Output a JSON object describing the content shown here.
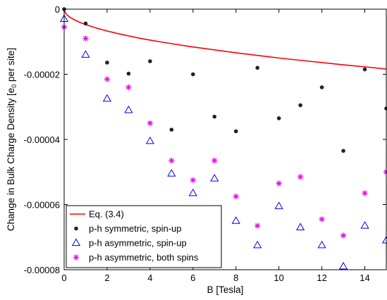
{
  "chart_data": {
    "type": "scatter",
    "xlabel": "B [Tesla]",
    "ylabel_main": "Change in Bulk Charge Density [e",
    "ylabel_sub": "0",
    "ylabel_end": " per site]",
    "xlim": [
      0,
      15
    ],
    "ylim": [
      -8e-05,
      0
    ],
    "xticks": [
      0,
      2,
      4,
      6,
      8,
      10,
      12,
      14
    ],
    "xtick_labels": [
      "0",
      "2",
      "4",
      "6",
      "8",
      "10",
      "12",
      "14"
    ],
    "yticks": [
      0,
      -2e-05,
      -4e-05,
      -6e-05,
      -8e-05
    ],
    "ytick_labels": [
      "0",
      "-0.00002",
      "-0.00004",
      "-0.00006",
      "-0.00008"
    ],
    "legend_position": "bottom-left",
    "series": [
      {
        "name": "Eq. (3.4)",
        "kind": "line",
        "color": "#ff0000",
        "x": [
          0,
          0.05,
          0.1,
          0.2,
          0.3,
          0.5,
          0.75,
          1,
          1.5,
          2,
          2.5,
          3,
          3.5,
          4,
          4.5,
          5,
          6,
          7,
          8,
          9,
          10,
          11,
          12,
          13,
          14,
          15
        ],
        "y": [
          0,
          -1.06e-06,
          -1.5e-06,
          -2.12e-06,
          -2.6e-06,
          -3.35e-06,
          -4.1e-06,
          -4.74e-06,
          -5.8e-06,
          -6.7e-06,
          -7.5e-06,
          -8.2e-06,
          -8.9e-06,
          -9.5e-06,
          -1.005e-05,
          -1.06e-05,
          -1.16e-05,
          -1.25e-05,
          -1.34e-05,
          -1.42e-05,
          -1.5e-05,
          -1.57e-05,
          -1.64e-05,
          -1.71e-05,
          -1.77e-05,
          -1.84e-05
        ]
      },
      {
        "name": "p-h symmetric, spin-up",
        "kind": "dot",
        "color": "#222222",
        "x": [
          0,
          1,
          2,
          3,
          4,
          5,
          6,
          7,
          8,
          9,
          10,
          11,
          12,
          13,
          14,
          15
        ],
        "y": [
          0,
          -4.4e-06,
          -1.64e-05,
          -1.98e-05,
          -1.6e-05,
          -3.7e-05,
          -2e-05,
          -3.3e-05,
          -3.75e-05,
          -1.8e-05,
          -3.35e-05,
          -2.95e-05,
          -2.4e-05,
          -4.35e-05,
          -1.85e-05,
          -3.05e-05
        ]
      },
      {
        "name": "p-h asymmetric, spin-up",
        "kind": "triangle",
        "color": "#0000ee",
        "x": [
          0,
          1,
          2,
          3,
          4,
          5,
          6,
          7,
          8,
          9,
          10,
          11,
          12,
          13,
          14,
          15
        ],
        "y": [
          -3e-06,
          -1.4e-05,
          -2.75e-05,
          -3.1e-05,
          -4.05e-05,
          -5.05e-05,
          -5.65e-05,
          -5.2e-05,
          -6.5e-05,
          -7.25e-05,
          -6.05e-05,
          -6.7e-05,
          -7.25e-05,
          -7.9e-05,
          -6.65e-05,
          -7.1e-05
        ]
      },
      {
        "name": "p-h asymmetric, both spins",
        "kind": "star",
        "color": "#ee00ee",
        "x": [
          0,
          1,
          2,
          3,
          4,
          5,
          6,
          7,
          8,
          9,
          10,
          11,
          12,
          13,
          14,
          15
        ],
        "y": [
          -5.5e-06,
          -9e-06,
          -2.15e-05,
          -2.4e-05,
          -3.5e-05,
          -4.65e-05,
          -5.25e-05,
          -4.65e-05,
          -5.75e-05,
          -6.65e-05,
          -5.35e-05,
          -5.15e-05,
          -6.45e-05,
          -6.95e-05,
          -5.65e-05,
          -5e-05
        ]
      }
    ]
  }
}
